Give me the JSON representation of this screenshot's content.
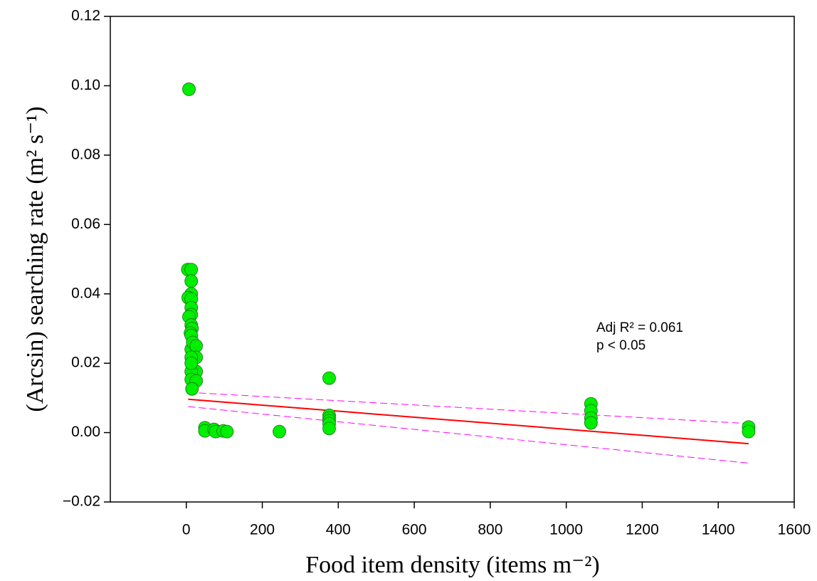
{
  "chart_data": {
    "type": "scatter",
    "xlabel": "Food item density (items m⁻²)",
    "ylabel": "(Arcsin) searching rate (m² s⁻¹)",
    "annotations": [
      "Adj R² = 0.061",
      "p < 0.05"
    ],
    "xlim": [
      -200,
      1600
    ],
    "xticks": [
      0,
      200,
      400,
      600,
      800,
      1000,
      1200,
      1400,
      1600
    ],
    "ylim": [
      -0.02,
      0.12
    ],
    "yticks": [
      {
        "value": -0.02,
        "label": "−0.02"
      },
      {
        "value": 0,
        "label": "0.00"
      },
      {
        "value": 0.02,
        "label": "0.02"
      },
      {
        "value": 0.04,
        "label": "0.04"
      },
      {
        "value": 0.06,
        "label": "0.06"
      },
      {
        "value": 0.08,
        "label": "0.08"
      },
      {
        "value": 0.1,
        "label": "0.10"
      },
      {
        "value": 0.12,
        "label": "0.12"
      }
    ],
    "color": "#00ee00",
    "x": [
      7,
      4,
      13,
      13,
      13,
      5,
      13,
      13,
      13,
      7,
      13,
      15,
      11,
      13,
      13,
      17,
      26,
      26,
      13,
      26,
      13,
      13,
      26,
      15,
      13,
      49,
      49,
      73,
      77,
      97,
      107,
      245,
      376,
      376,
      376,
      376,
      376,
      376,
      1065,
      1065,
      1065,
      1065,
      1480,
      1480
    ],
    "values": [
      0.099,
      0.047,
      0.047,
      0.0437,
      0.04,
      0.0389,
      0.0385,
      0.036,
      0.034,
      0.0334,
      0.031,
      0.03,
      0.0287,
      0.028,
      0.024,
      0.026,
      0.025,
      0.0217,
      0.0217,
      0.0176,
      0.0176,
      0.0153,
      0.0149,
      0.0126,
      0.02,
      0.0014,
      0.0005,
      0.0009,
      0.0003,
      0.0005,
      0.0003,
      0.0003,
      0.0157,
      0.005,
      0.0042,
      0.0034,
      0.0026,
      0.0012,
      0.0083,
      0.0063,
      0.0042,
      0.0028,
      0.0016,
      0.0003
    ],
    "lines": [
      {
        "x": [
          5,
          1480
        ],
        "values": [
          0.0096,
          -0.0032
        ],
        "color": "#ff0000",
        "dashed": false
      },
      {
        "x": [
          5,
          1480
        ],
        "values": [
          0.0116,
          0.0026
        ],
        "color": "#ff00ff",
        "dashed": true
      },
      {
        "x": [
          5,
          1480
        ],
        "values": [
          0.0075,
          -0.0088
        ],
        "color": "#ff00ff",
        "dashed": true
      }
    ]
  }
}
